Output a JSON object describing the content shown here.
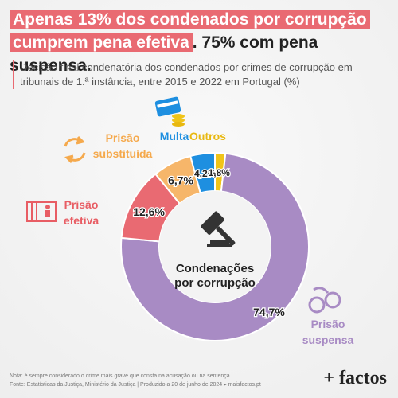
{
  "title": {
    "highlight_part1": "Apenas 13% dos condenados por corrupção",
    "highlight_part2": "cumprem pena efetiva",
    "rest": ". 75% com pena suspensa."
  },
  "subtitle": "Decisão final condenatória dos condenados por crimes de corrupção em tribunais de 1.ª instância, entre 2015 e 2022 em Portugal (%)",
  "center_label": [
    "Condenações",
    "por corrupção"
  ],
  "chart_data": {
    "type": "pie",
    "donut": true,
    "categories": [
      "Prisão suspensa",
      "Prisão efetiva",
      "Prisão substituída",
      "Multa",
      "Outros"
    ],
    "legend_text": [
      [
        "Prisão",
        "suspensa"
      ],
      [
        "Prisão",
        "efetiva"
      ],
      [
        "Prisão",
        "substituída"
      ],
      [
        "Multa"
      ],
      [
        "Outros"
      ]
    ],
    "values": [
      74.7,
      12.6,
      6.7,
      4.2,
      1.8
    ],
    "value_labels": [
      "74,7%",
      "12,6%",
      "6,7%",
      "4,2%",
      "1,8%"
    ],
    "colors": [
      "#a88bc4",
      "#e96a72",
      "#f6b66a",
      "#1e8fe0",
      "#f0c419"
    ],
    "label_colors": [
      "#a88bc4",
      "#e85d64",
      "#f5a94c",
      "#1e8fe0",
      "#e8b80f"
    ]
  },
  "icons": [
    "handcuffs-icon",
    "jail-icon",
    "swap-arrows-icon",
    "money-card-icon",
    "gavel-icon"
  ],
  "footer": {
    "line1": "Nota: é sempre considerado o crime mais grave que consta na acusação ou na sentença.",
    "line2": "Fonte: Estatísticas da Justiça, Ministério da Justiça | Produzido a 20 de junho de 2024 ▸ maisfactos.pt"
  },
  "brand": "+ factos"
}
